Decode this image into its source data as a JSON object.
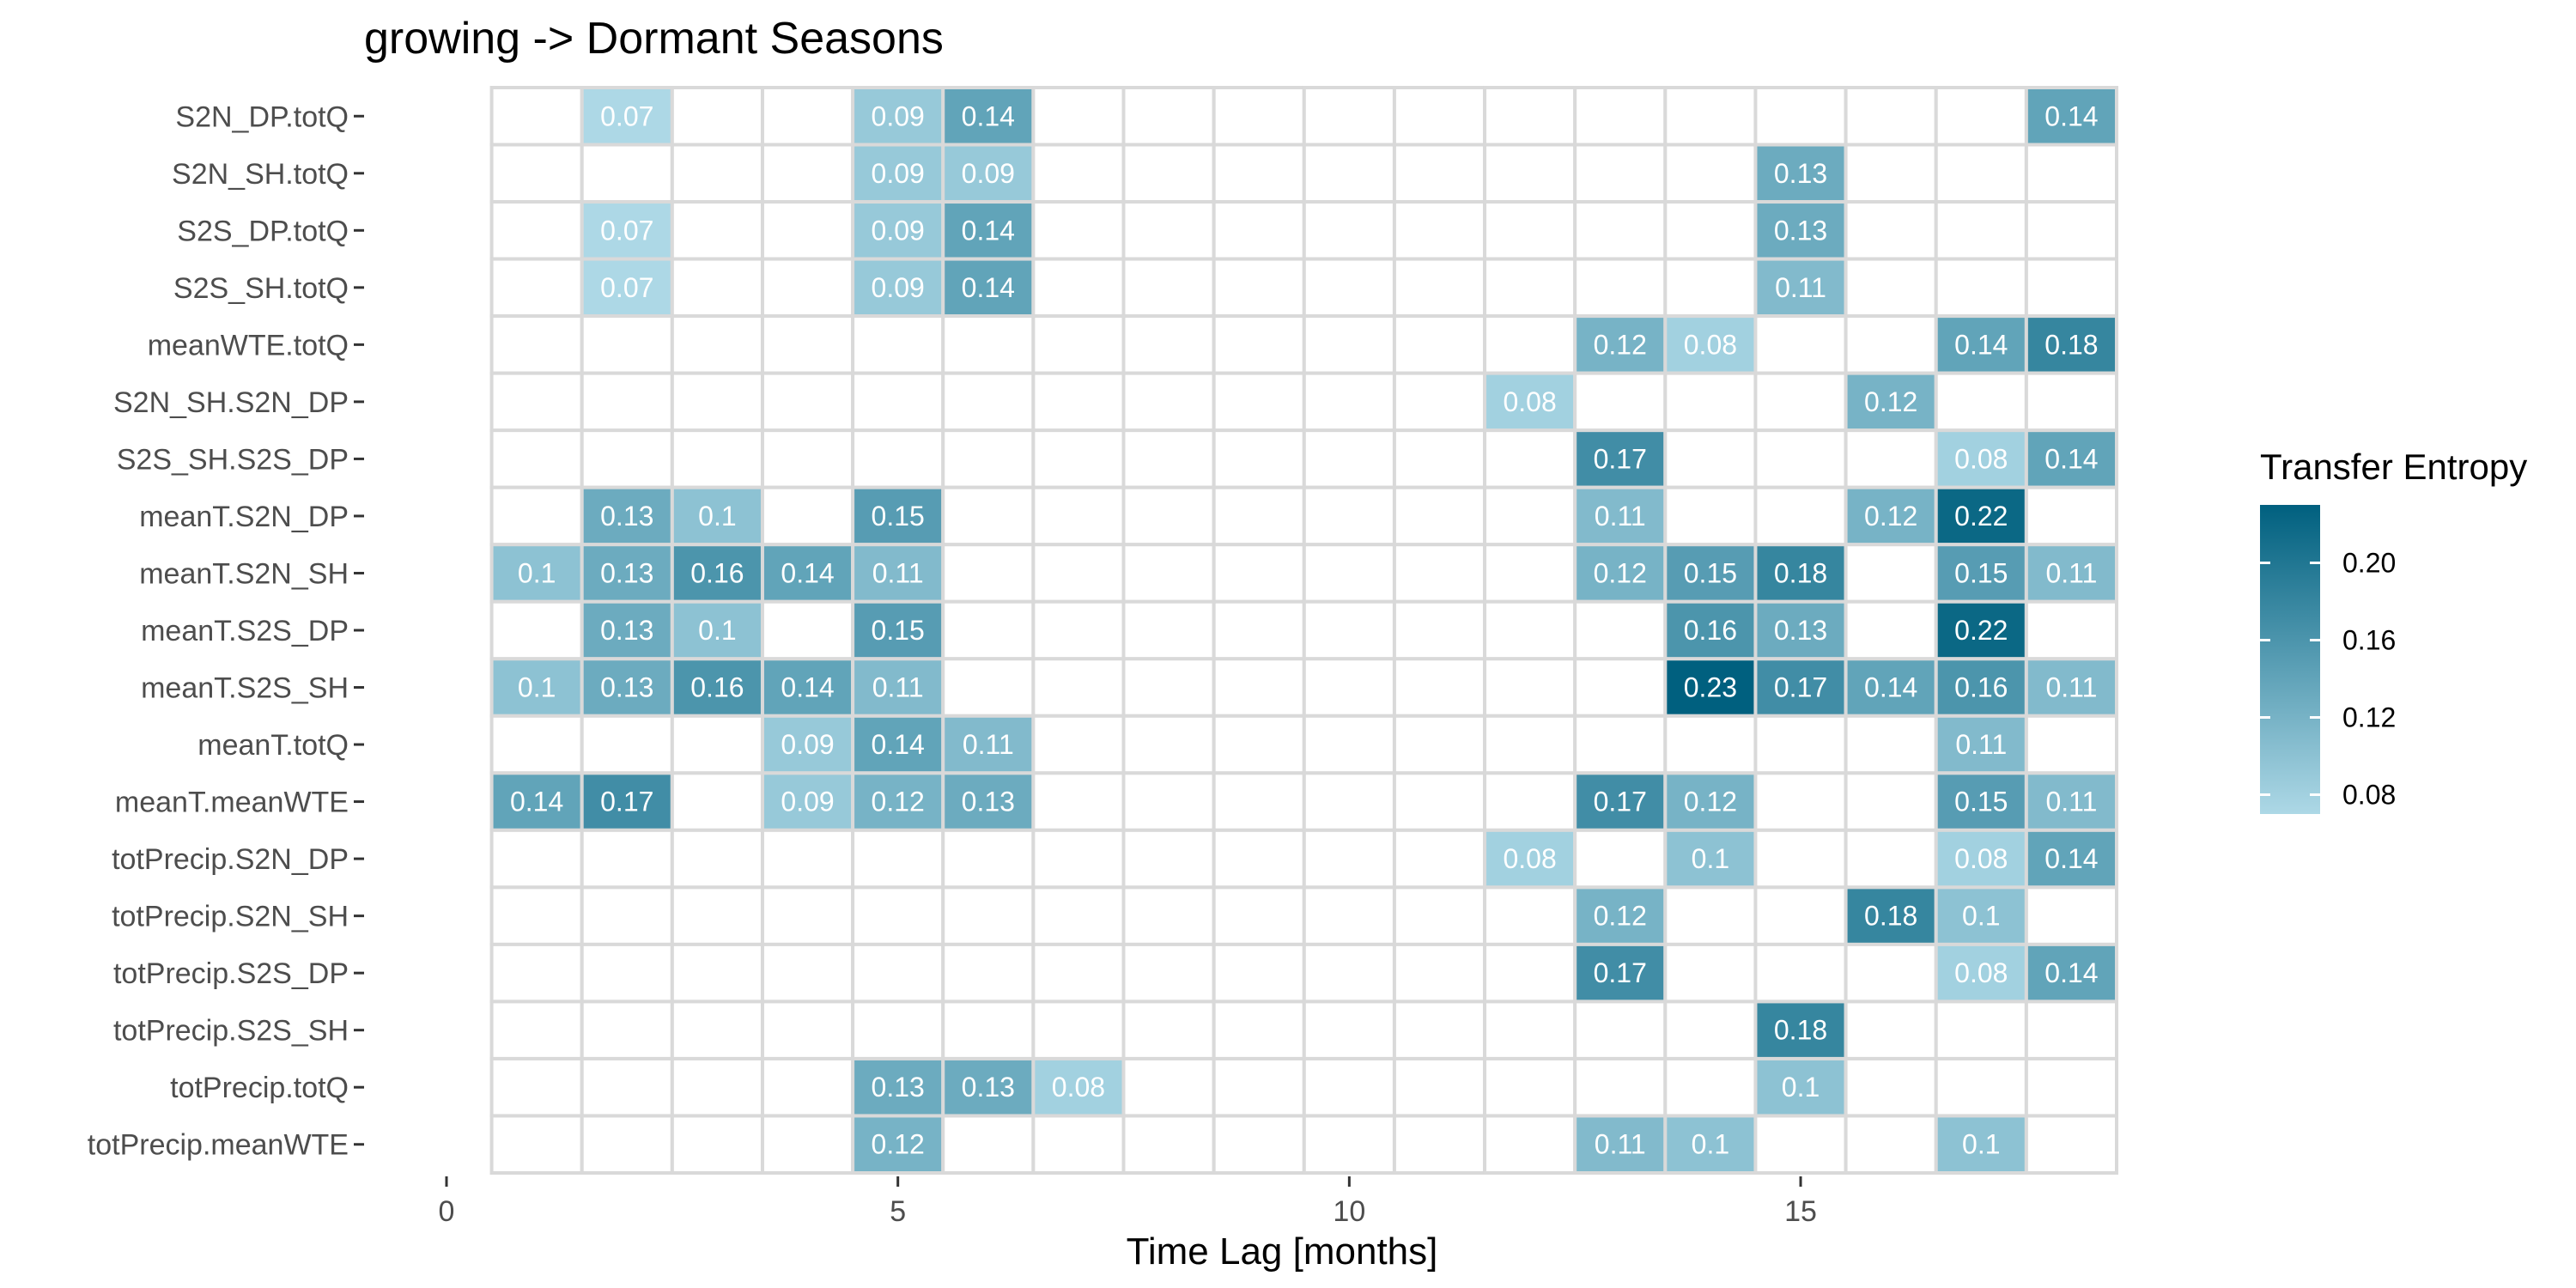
{
  "chart_data": {
    "type": "heatmap",
    "title": "growing -> Dormant Seasons",
    "xlabel": "Time Lag [months]",
    "ylabel": "",
    "xlim": [
      0,
      18.5
    ],
    "x_ticks": [
      0,
      5,
      10,
      15
    ],
    "rows": [
      "S2N_DP.totQ",
      "S2N_SH.totQ",
      "S2S_DP.totQ",
      "S2S_SH.totQ",
      "meanWTE.totQ",
      "S2N_SH.S2N_DP",
      "S2S_SH.S2S_DP",
      "meanT.S2N_DP",
      "meanT.S2N_SH",
      "meanT.S2S_DP",
      "meanT.S2S_SH",
      "meanT.totQ",
      "meanT.meanWTE",
      "totPrecip.S2N_DP",
      "totPrecip.S2N_SH",
      "totPrecip.S2S_DP",
      "totPrecip.S2S_SH",
      "totPrecip.totQ",
      "totPrecip.meanWTE"
    ],
    "columns": [
      1,
      2,
      3,
      4,
      5,
      6,
      7,
      8,
      9,
      10,
      11,
      12,
      13,
      14,
      15,
      16,
      17,
      18
    ],
    "values": [
      [
        null,
        0.07,
        null,
        null,
        0.09,
        0.14,
        null,
        null,
        null,
        null,
        null,
        null,
        null,
        null,
        null,
        null,
        null,
        0.14
      ],
      [
        null,
        null,
        null,
        null,
        0.09,
        0.09,
        null,
        null,
        null,
        null,
        null,
        null,
        null,
        null,
        0.13,
        null,
        null,
        null
      ],
      [
        null,
        0.07,
        null,
        null,
        0.09,
        0.14,
        null,
        null,
        null,
        null,
        null,
        null,
        null,
        null,
        0.13,
        null,
        null,
        null
      ],
      [
        null,
        0.07,
        null,
        null,
        0.09,
        0.14,
        null,
        null,
        null,
        null,
        null,
        null,
        null,
        null,
        0.11,
        null,
        null,
        null
      ],
      [
        null,
        null,
        null,
        null,
        null,
        null,
        null,
        null,
        null,
        null,
        null,
        null,
        0.12,
        0.08,
        null,
        null,
        0.14,
        0.18
      ],
      [
        null,
        null,
        null,
        null,
        null,
        null,
        null,
        null,
        null,
        null,
        null,
        0.08,
        null,
        null,
        null,
        0.12,
        null,
        null
      ],
      [
        null,
        null,
        null,
        null,
        null,
        null,
        null,
        null,
        null,
        null,
        null,
        null,
        0.17,
        null,
        null,
        null,
        0.08,
        0.14
      ],
      [
        null,
        0.13,
        0.1,
        null,
        0.15,
        null,
        null,
        null,
        null,
        null,
        null,
        null,
        0.11,
        null,
        null,
        0.12,
        0.22,
        null
      ],
      [
        0.1,
        0.13,
        0.16,
        0.14,
        0.11,
        null,
        null,
        null,
        null,
        null,
        null,
        null,
        0.12,
        0.15,
        0.18,
        null,
        0.15,
        0.11
      ],
      [
        null,
        0.13,
        0.1,
        null,
        0.15,
        null,
        null,
        null,
        null,
        null,
        null,
        null,
        null,
        0.16,
        0.13,
        null,
        0.22,
        null
      ],
      [
        0.1,
        0.13,
        0.16,
        0.14,
        0.11,
        null,
        null,
        null,
        null,
        null,
        null,
        null,
        null,
        0.23,
        0.17,
        0.14,
        0.16,
        0.11
      ],
      [
        null,
        null,
        null,
        0.09,
        0.14,
        0.11,
        null,
        null,
        null,
        null,
        null,
        null,
        null,
        null,
        null,
        null,
        0.11,
        null
      ],
      [
        0.14,
        0.17,
        null,
        0.09,
        0.12,
        0.13,
        null,
        null,
        null,
        null,
        null,
        null,
        0.17,
        0.12,
        null,
        null,
        0.15,
        0.11
      ],
      [
        null,
        null,
        null,
        null,
        null,
        null,
        null,
        null,
        null,
        null,
        null,
        0.08,
        null,
        0.1,
        null,
        null,
        0.08,
        0.14
      ],
      [
        null,
        null,
        null,
        null,
        null,
        null,
        null,
        null,
        null,
        null,
        null,
        null,
        0.12,
        null,
        null,
        0.18,
        0.1,
        null
      ],
      [
        null,
        null,
        null,
        null,
        null,
        null,
        null,
        null,
        null,
        null,
        null,
        null,
        0.17,
        null,
        null,
        null,
        0.08,
        0.14
      ],
      [
        null,
        null,
        null,
        null,
        null,
        null,
        null,
        null,
        null,
        null,
        null,
        null,
        null,
        null,
        0.18,
        null,
        null,
        null
      ],
      [
        null,
        null,
        null,
        null,
        0.13,
        0.13,
        0.08,
        null,
        null,
        null,
        null,
        null,
        null,
        null,
        0.1,
        null,
        null,
        null
      ],
      [
        null,
        null,
        null,
        null,
        0.12,
        null,
        null,
        null,
        null,
        null,
        null,
        null,
        0.11,
        0.1,
        null,
        null,
        0.1,
        null
      ]
    ],
    "legend": {
      "title": "Transfer Entropy",
      "ticks": [
        "0.08",
        "0.12",
        "0.16",
        "0.20"
      ],
      "range": [
        0.07,
        0.23
      ],
      "position": "right"
    },
    "colors": {
      "low": "#add8e6",
      "high": "#00607f",
      "grid": "#d9d9d9",
      "background": "#ffffff"
    },
    "grid": true
  }
}
